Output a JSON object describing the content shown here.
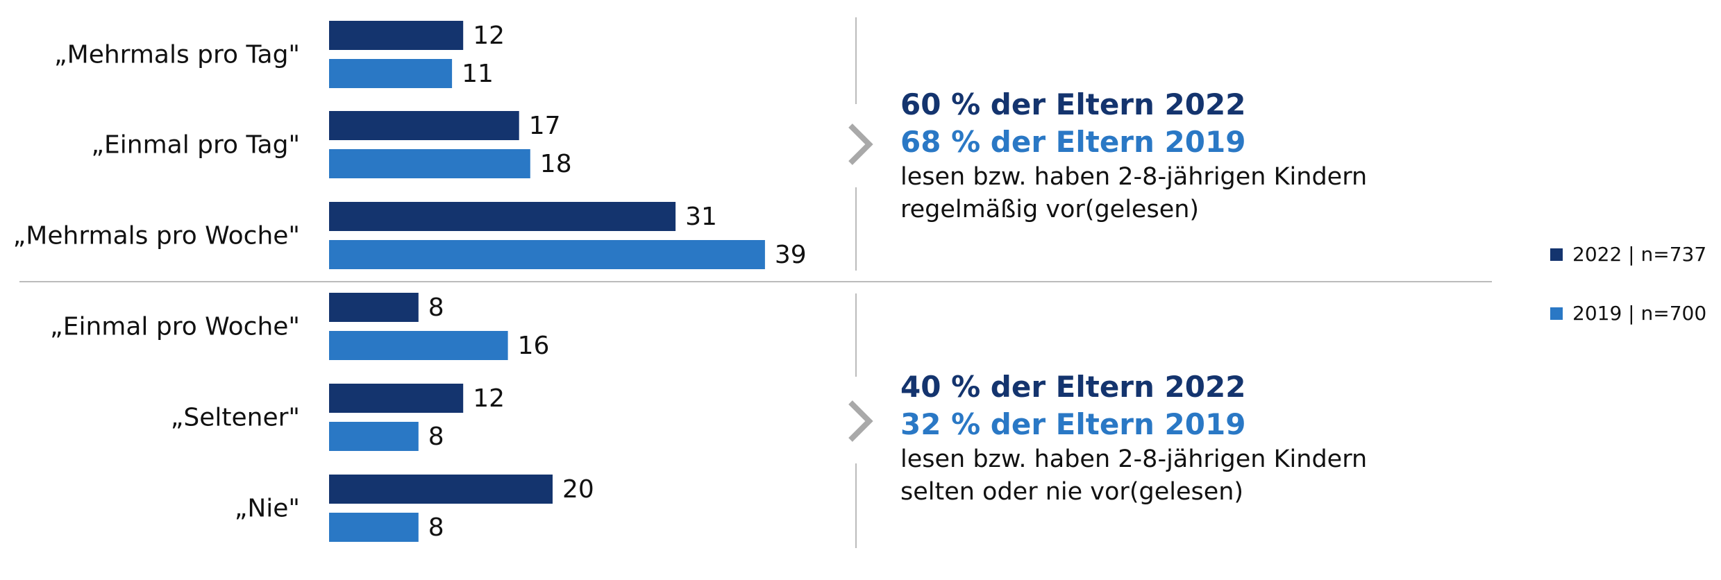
{
  "colors": {
    "y2022": "#14346e",
    "y2019": "#2a78c5",
    "divider": "#bbbbbb",
    "arrow": "#a9a9a9",
    "text": "#111111"
  },
  "legend": [
    {
      "label": "2022 | n=737",
      "color": "#14346e"
    },
    {
      "label": "2019 | n=700",
      "color": "#2a78c5"
    }
  ],
  "summary_top": {
    "line_2022": "60 % der Eltern 2022",
    "line_2019": "68 % der Eltern 2019",
    "desc1": "lesen bzw. haben 2-8-jährigen Kindern",
    "desc2": "regelmäßig vor(gelesen)"
  },
  "summary_bottom": {
    "line_2022": "40 % der Eltern 2022",
    "line_2019": "32 % der Eltern 2019",
    "desc1": "lesen bzw. haben 2-8-jährigen Kindern",
    "desc2": "selten oder nie vor(gelesen)"
  },
  "chart_data": {
    "type": "bar",
    "orientation": "horizontal",
    "categories": [
      "„Mehrmals pro Tag\"",
      "„Einmal pro Tag\"",
      "„Mehrmals pro Woche\"",
      "„Einmal pro Woche\"",
      "„Seltener\"",
      "„Nie\""
    ],
    "series": [
      {
        "name": "2022 | n=737",
        "values": [
          12,
          17,
          31,
          8,
          12,
          20
        ]
      },
      {
        "name": "2019 | n=700",
        "values": [
          11,
          18,
          39,
          16,
          8,
          8
        ]
      }
    ],
    "title": "",
    "xlabel": "",
    "ylabel": "",
    "xlim": [
      0,
      39
    ],
    "grid": false,
    "legend_position": "right"
  }
}
